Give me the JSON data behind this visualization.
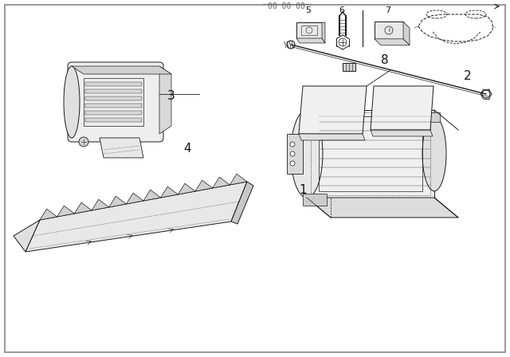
{
  "bg_color": "#ffffff",
  "border_color": "#888888",
  "line_color": "#1a1a1a",
  "text_color": "#111111",
  "label_fontsize": 11,
  "small_fontsize": 8,
  "lw": 0.7
}
